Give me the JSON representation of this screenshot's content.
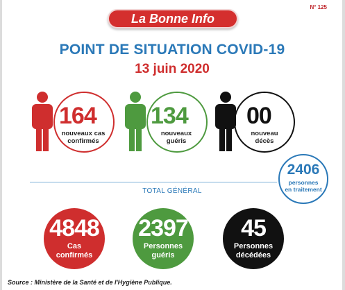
{
  "issue_number": "N° 125",
  "brand": "La Bonne Info",
  "title": "POINT DE SITUATION COVID-19",
  "date": "13 juin 2020",
  "daily": [
    {
      "value": "164",
      "label_line1": "nouveaux cas",
      "label_line2": "confirmés",
      "color": "#cf2e2e"
    },
    {
      "value": "134",
      "label_line1": "nouveaux",
      "label_line2": "guéris",
      "color": "#4e9a3f"
    },
    {
      "value": "00",
      "label_line1": "nouveau",
      "label_line2": "décès",
      "color": "#111111"
    }
  ],
  "in_treatment": {
    "value": "2406",
    "label_line1": "personnes",
    "label_line2": "en traitement",
    "color": "#2b79b8"
  },
  "total_label": "TOTAL GÉNÉRAL",
  "totals": [
    {
      "value": "4848",
      "label_line1": "Cas",
      "label_line2": "confirmés",
      "color": "#cf2e2e"
    },
    {
      "value": "2397",
      "label_line1": "Personnes",
      "label_line2": "guéris",
      "color": "#4e9a3f"
    },
    {
      "value": "45",
      "label_line1": "Personnes",
      "label_line2": "décédées",
      "color": "#111111"
    }
  ],
  "source": "Source : Ministère de la Santé et de l'Hygiène Publique.",
  "icons": [
    "person-icon-red",
    "person-icon-green",
    "person-icon-black"
  ]
}
